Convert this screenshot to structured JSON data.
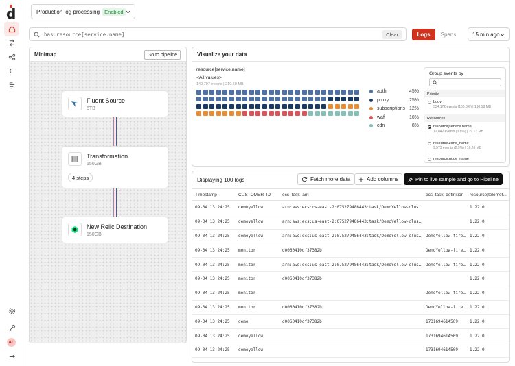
{
  "colors": {
    "accent": "#d1321e",
    "auth": "#4f71a1",
    "proxy": "#1c3a5f",
    "subscriptions": "#e58d37",
    "waf": "#d9535a",
    "cdn": "#85bfb6"
  },
  "rail": {
    "avatar_initials": "AL",
    "icons": [
      "home-icon",
      "routing-icon",
      "graph-icon",
      "arrow-left-icon",
      "stack-icon",
      "settings-icon",
      "key-icon",
      "expand-icon"
    ]
  },
  "topbar": {
    "pipeline_name": "Production log processing",
    "pipeline_status": "Enabled"
  },
  "search": {
    "query": "has:resource[service.name]",
    "clear_label": "Clear"
  },
  "toggle": {
    "logs_label": "Logs",
    "spans_label": "Spans"
  },
  "time_range": "15 min ago",
  "minimap": {
    "title": "Minimap",
    "go_label": "Go to pipeline",
    "nodes": [
      {
        "name": "Fluent Source",
        "size": "5TB"
      },
      {
        "name": "Transformation",
        "size": "150GB",
        "steps": "4 steps"
      },
      {
        "name": "New Relic Destination",
        "size": "150GB"
      }
    ]
  },
  "viz": {
    "title": "Visualize your data",
    "group_field": "resource[service.name]",
    "value_filter": "<All values>",
    "summary": "140,797 events | 210.69 MB",
    "legend": [
      {
        "name": "auth",
        "pct": "45%"
      },
      {
        "name": "proxy",
        "pct": "25%"
      },
      {
        "name": "subscriptions",
        "pct": "12%"
      },
      {
        "name": "waf",
        "pct": "10%"
      },
      {
        "name": "cdn",
        "pct": "8%"
      }
    ],
    "waffle_counts": [
      45,
      25,
      12,
      10,
      8
    ],
    "group_by": {
      "title": "Group events by",
      "priority_label": "Priority",
      "priority_opts": [
        {
          "name": "body",
          "stats": "334,172 events (100.0%) | 190.18 MB"
        }
      ],
      "resources_label": "Resources",
      "resource_opts": [
        {
          "name": "resource[service.name]",
          "stats": "12,842 events (3.8%) | 19.13 MB"
        },
        {
          "name": "resource.zone_name",
          "stats": "9,573 events (2.9%) | 16.26 MB"
        },
        {
          "name": "resource.node_name",
          "stats": ""
        }
      ]
    }
  },
  "table": {
    "display_label": "Displaying 100 logs",
    "fetch_label": "Fetch more data",
    "add_columns_label": "Add columns",
    "pin_label": "Pin to live sample and go to Pipeline",
    "columns": [
      "Timestamp",
      "CUSTOMER_ID",
      "ecs_task_arn",
      "ecs_task_definition",
      "resource[telemet..."
    ],
    "rows": [
      [
        "09-04 13:24:25",
        "demoyellow",
        "arn:aws:ecs:us-east-2:075279486443:task/DemoYellow-cluster/…",
        "",
        "1.22.0"
      ],
      [
        "09-04 13:24:25",
        "demoyellow",
        "arn:aws:ecs:us-east-2:075279486443:task/DemoYellow-cluster/…",
        "",
        "1.22.0"
      ],
      [
        "09-04 13:24:25",
        "demoyellow",
        "arn:aws:ecs:us-east-2:075279486443:task/DemoYellow-cluster/…",
        "DemoYellow-fire…",
        "1.22.0"
      ],
      [
        "09-04 13:24:25",
        "monitor",
        "d0060410df37382b",
        "DemoYellow-fire…",
        "1.22.0"
      ],
      [
        "09-04 13:24:25",
        "monitor",
        "arn:aws:ecs:us-east-2:075279486443:task/DemoYellow-cluster/…",
        "DemoYellow-fire…",
        "1.22.0"
      ],
      [
        "09-04 13:24:25",
        "monitor",
        "d0060410df37382b",
        "",
        "1.22.0"
      ],
      [
        "09-04 13:24:25",
        "monitor",
        "",
        "DemoYellow-fire…",
        "1.22.0"
      ],
      [
        "09-04 13:24:25",
        "monitor",
        "d0060410df37382b",
        "DemoYellow-fire…",
        "1.22.0"
      ],
      [
        "09-04 13:24:25",
        "demo",
        "d0060410df37382b",
        "1731694614509",
        "1.22.0"
      ],
      [
        "09-04 13:24:25",
        "demoyellow",
        "",
        "1731694614509",
        "1.22.0"
      ],
      [
        "09-04 13:24:25",
        "demoyellow",
        "",
        "1731694614509",
        "1.22.0"
      ]
    ]
  }
}
